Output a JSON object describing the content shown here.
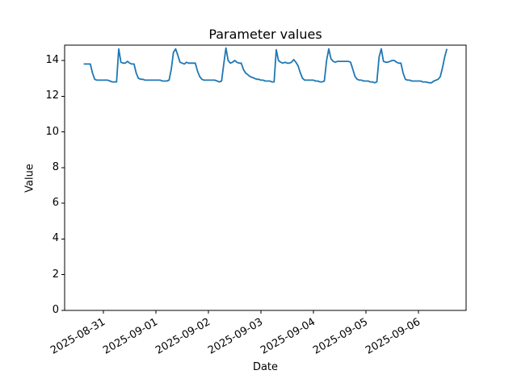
{
  "chart_data": {
    "type": "line",
    "title": "Parameter values",
    "xlabel": "Date",
    "ylabel": "Value",
    "grid": false,
    "legend_position": "none",
    "line_color": "#1f77b4",
    "background_color": "#ffffff",
    "axis_color": "#000000",
    "ylim": [
      0,
      14.86
    ],
    "yticks": [
      0,
      2,
      4,
      6,
      8,
      10,
      12,
      14
    ],
    "xticks": [
      {
        "date": "2025-08-31T00:00",
        "label": "2025-08-31"
      },
      {
        "date": "2025-09-01T00:00",
        "label": "2025-09-01"
      },
      {
        "date": "2025-09-02T00:00",
        "label": "2025-09-02"
      },
      {
        "date": "2025-09-03T00:00",
        "label": "2025-09-03"
      },
      {
        "date": "2025-09-04T00:00",
        "label": "2025-09-04"
      },
      {
        "date": "2025-09-05T00:00",
        "label": "2025-09-05"
      },
      {
        "date": "2025-09-06T00:00",
        "label": "2025-09-06"
      }
    ],
    "xtick_rotation_deg": 30,
    "series": [
      {
        "name": "Parameter values",
        "start": "2025-08-30T15:00",
        "end": "2025-09-06T13:00",
        "step_hours": 1,
        "values": [
          13.8,
          13.8,
          13.8,
          13.8,
          13.3,
          12.95,
          12.9,
          12.9,
          12.9,
          12.9,
          12.9,
          12.9,
          12.85,
          12.8,
          12.8,
          12.8,
          14.65,
          13.9,
          13.85,
          13.85,
          13.95,
          13.85,
          13.8,
          13.8,
          13.3,
          13.0,
          12.95,
          12.95,
          12.9,
          12.9,
          12.9,
          12.9,
          12.9,
          12.9,
          12.9,
          12.9,
          12.85,
          12.85,
          12.85,
          12.9,
          13.5,
          14.45,
          14.65,
          14.3,
          13.9,
          13.85,
          13.8,
          13.9,
          13.85,
          13.85,
          13.85,
          13.85,
          13.4,
          13.1,
          12.95,
          12.9,
          12.9,
          12.9,
          12.9,
          12.9,
          12.9,
          12.85,
          12.8,
          12.85,
          13.8,
          14.7,
          14.0,
          13.85,
          13.9,
          14.0,
          13.9,
          13.85,
          13.85,
          13.5,
          13.3,
          13.2,
          13.1,
          13.05,
          13.0,
          12.95,
          12.95,
          12.9,
          12.9,
          12.85,
          12.85,
          12.85,
          12.8,
          12.8,
          14.6,
          14.0,
          13.9,
          13.85,
          13.9,
          13.85,
          13.85,
          13.9,
          14.05,
          13.9,
          13.7,
          13.3,
          13.0,
          12.9,
          12.9,
          12.9,
          12.9,
          12.9,
          12.85,
          12.85,
          12.8,
          12.8,
          12.85,
          14.0,
          14.65,
          14.1,
          13.95,
          13.9,
          13.95,
          13.95,
          13.95,
          13.95,
          13.95,
          13.95,
          13.9,
          13.5,
          13.1,
          12.95,
          12.9,
          12.9,
          12.85,
          12.85,
          12.85,
          12.8,
          12.8,
          12.75,
          12.8,
          14.2,
          14.65,
          13.95,
          13.9,
          13.9,
          13.95,
          14.0,
          14.0,
          13.9,
          13.85,
          13.85,
          13.3,
          12.95,
          12.9,
          12.9,
          12.85,
          12.85,
          12.85,
          12.85,
          12.85,
          12.8,
          12.8,
          12.78,
          12.75,
          12.75,
          12.85,
          12.9,
          12.95,
          13.1,
          13.6,
          14.2,
          14.65
        ]
      }
    ]
  }
}
